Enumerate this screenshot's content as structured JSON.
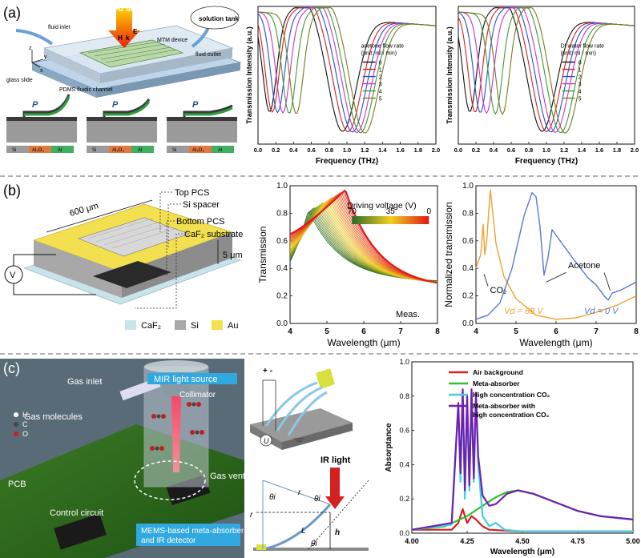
{
  "panels": {
    "a": {
      "label": "(a)",
      "device": {
        "thz_beam": "THz beam",
        "fluid_inlet": "fluid inlet",
        "fluid_outlet": "fluid outlet",
        "solution_tank": "solution tank",
        "mtm_device": "MTM device",
        "glass_slide": "glass slide",
        "pdms_channel": "PDMS fluidic channel",
        "axis_z": "z",
        "axis_y": "y",
        "axis_x": "x",
        "h": "H",
        "e": "E",
        "k": "k",
        "pressure": "P",
        "materials": [
          "Si",
          "Al₂O₃",
          "Al"
        ]
      }
    },
    "b": {
      "label": "(b)",
      "device": {
        "top_pcs": "Top PCS",
        "si_spacer": "Si spacer",
        "bottom_pcs": "Bottom PCS",
        "substrate": "CaF₂ substrate",
        "width": "600 μm",
        "gap": "5 μm",
        "voltage": "V",
        "legend": [
          "CaF₂",
          "Si",
          "Au"
        ]
      }
    },
    "c": {
      "label": "(c)",
      "device": {
        "gas_inlet": "Gas inlet",
        "mir_source": "MIR light source",
        "collimator": "Collimator",
        "gas_molecules": "Gas molecules",
        "legend_h": "H",
        "legend_c": "C",
        "legend_o": "O",
        "pcb": "PCB",
        "gas_vent": "Gas vent",
        "control_circuit": "Control circuit",
        "mems_label_1": "MEMS-based meta-absorber",
        "mems_label_2": "and IR detector",
        "plus_minus": "+  -",
        "u": "U",
        "ir_light": "IR light",
        "theta_i": "θi",
        "r": "r",
        "L": "L",
        "h": "h"
      }
    }
  },
  "chart_data": [
    {
      "type": "line",
      "id": "a-acetone",
      "title": "",
      "xlabel": "Frequency (THz)",
      "ylabel": "Transmission Intensity (a.u.)",
      "xlim": [
        0.0,
        2.0
      ],
      "xticks": [
        "0.0",
        "0.2",
        "0.4",
        "0.6",
        "0.8",
        "1.0",
        "1.2",
        "1.4",
        "1.6",
        "1.8",
        "2.0"
      ],
      "legend_title_1": "acetone flow rate",
      "legend_title_2": "(unit: ml / min)",
      "series": [
        {
          "name": "0",
          "color": "#111111",
          "dips": [
            0.13,
            0.95
          ]
        },
        {
          "name": "1",
          "color": "#d42020",
          "dips": [
            0.16,
            1.01
          ]
        },
        {
          "name": "2",
          "color": "#2050d0",
          "dips": [
            0.22,
            1.06
          ]
        },
        {
          "name": "3",
          "color": "#d030d0",
          "dips": [
            0.28,
            1.11
          ]
        },
        {
          "name": "4",
          "color": "#3a9a3a",
          "dips": [
            0.35,
            1.15
          ]
        },
        {
          "name": "5",
          "color": "#7a7a1a",
          "dips": [
            0.43,
            1.2
          ]
        }
      ]
    },
    {
      "type": "line",
      "id": "a-water",
      "title": "",
      "xlabel": "Frequency (THz)",
      "ylabel": "Transmission Intensity (a.u.)",
      "xlim": [
        0.0,
        2.0
      ],
      "xticks": [
        "0.0",
        "0.2",
        "0.4",
        "0.6",
        "0.8",
        "1.0",
        "1.2",
        "1.4",
        "1.6",
        "1.8",
        "2.0"
      ],
      "legend_title_1": "DI water flow rate",
      "legend_title_2": "(unit: ml / min)",
      "series": [
        {
          "name": "0",
          "color": "#111111",
          "dips": [
            0.13,
            0.95
          ]
        },
        {
          "name": "1",
          "color": "#d42020",
          "dips": [
            0.19,
            1.0
          ]
        },
        {
          "name": "2",
          "color": "#2050d0",
          "dips": [
            0.25,
            1.05
          ]
        },
        {
          "name": "3",
          "color": "#d030d0",
          "dips": [
            0.32,
            1.1
          ]
        },
        {
          "name": "4",
          "color": "#3a9a3a",
          "dips": [
            0.42,
            1.16
          ]
        },
        {
          "name": "5",
          "color": "#7a7a1a",
          "dips": [
            0.5,
            1.21
          ]
        }
      ]
    },
    {
      "type": "line",
      "id": "b-transmission",
      "xlabel": "Wavelength (μm)",
      "ylabel": "Transmission",
      "xlim": [
        4,
        8
      ],
      "ylim": [
        0.0,
        1.0
      ],
      "xticks": [
        "4",
        "5",
        "6",
        "7",
        "8"
      ],
      "yticks": [
        "0.0",
        "0.2",
        "0.4",
        "0.6",
        "0.8",
        "1.0"
      ],
      "colorbar_title": "Driving voltage (V)",
      "colorbar_ticks": [
        "70",
        "35",
        "0"
      ],
      "annotation": "Meas.",
      "series_count": 30,
      "peak_range_um": [
        4.5,
        5.5
      ],
      "peak_values": [
        0.82,
        0.97
      ]
    },
    {
      "type": "line",
      "id": "b-normalized",
      "xlabel": "Wavelength (μm)",
      "ylabel": "Normalized transmission",
      "xlim": [
        4,
        8
      ],
      "ylim": [
        0.0,
        1.0
      ],
      "xticks": [
        "4",
        "5",
        "6",
        "7",
        "8"
      ],
      "yticks": [
        "0.0",
        "0.2",
        "0.4",
        "0.6",
        "0.8",
        "1.0"
      ],
      "annotations": [
        "CO₂",
        "Acetone"
      ],
      "series": [
        {
          "name": "Vₐ = 68 V",
          "label": "Vd = 68 V",
          "color": "#f0a030",
          "x": [
            4.0,
            4.12,
            4.18,
            4.22,
            4.27,
            4.32,
            4.36,
            4.42,
            4.5,
            4.7,
            5.0,
            5.5,
            6.0,
            6.5,
            7.0,
            7.5,
            8.0
          ],
          "y": [
            0.4,
            0.5,
            0.72,
            0.5,
            0.6,
            0.82,
            0.97,
            0.8,
            0.58,
            0.34,
            0.18,
            0.06,
            0.03,
            0.04,
            0.08,
            0.13,
            0.2
          ]
        },
        {
          "name": "Vₐ = 0 V",
          "label": "Vd = 0 V",
          "color": "#5a78d0",
          "x": [
            4.0,
            4.3,
            4.6,
            4.9,
            5.2,
            5.4,
            5.5,
            5.6,
            5.7,
            5.8,
            5.9,
            6.1,
            6.4,
            6.8,
            7.0,
            7.2,
            7.3,
            7.4,
            7.6,
            8.0
          ],
          "y": [
            0.03,
            0.06,
            0.15,
            0.4,
            0.78,
            0.95,
            0.92,
            0.7,
            0.35,
            0.48,
            0.68,
            0.6,
            0.48,
            0.33,
            0.28,
            0.2,
            0.17,
            0.22,
            0.24,
            0.3
          ]
        }
      ]
    },
    {
      "type": "line",
      "id": "c-absorptance",
      "xlabel": "Wavelength (μm)",
      "ylabel": "Absorptance",
      "xlim": [
        4.0,
        5.0
      ],
      "ylim": [
        0.0,
        1.0
      ],
      "xticks": [
        "4.00",
        "4.25",
        "4.50",
        "4.75",
        "5.00"
      ],
      "yticks": [
        "0.0",
        "0.2",
        "0.4",
        "0.6",
        "0.8",
        "1.0"
      ],
      "series": [
        {
          "name": "Air background",
          "label": "Air background",
          "color": "#d02020",
          "x": [
            4.0,
            4.18,
            4.21,
            4.23,
            4.25,
            4.27,
            4.29,
            4.32,
            4.35,
            4.5,
            4.75,
            5.0
          ],
          "y": [
            0.02,
            0.02,
            0.06,
            0.14,
            0.06,
            0.1,
            0.08,
            0.04,
            0.02,
            0.01,
            0.01,
            0.01
          ]
        },
        {
          "name": "Meta-absorber",
          "label": "Meta-absorber",
          "color": "#30c030",
          "x": [
            4.0,
            4.15,
            4.25,
            4.32,
            4.38,
            4.43,
            4.48,
            4.55,
            4.65,
            4.75,
            4.85,
            5.0
          ],
          "y": [
            0.02,
            0.04,
            0.1,
            0.16,
            0.21,
            0.24,
            0.25,
            0.23,
            0.18,
            0.13,
            0.1,
            0.08
          ]
        },
        {
          "name": "High concentration CO2",
          "label": "High concentration CO₂",
          "color": "#40d0e0",
          "x": [
            4.0,
            4.18,
            4.21,
            4.22,
            4.23,
            4.24,
            4.25,
            4.26,
            4.27,
            4.28,
            4.29,
            4.3,
            4.32,
            4.35,
            4.38,
            4.42,
            4.5,
            5.0
          ],
          "y": [
            0.02,
            0.05,
            0.74,
            0.3,
            0.82,
            0.2,
            0.78,
            0.25,
            0.82,
            0.3,
            0.8,
            0.4,
            0.1,
            0.04,
            0.06,
            0.02,
            0.01,
            0.01
          ]
        },
        {
          "name": "Meta-absorber with high concentration CO2",
          "label_1": "Meta-absorber with",
          "label_2": "high concentration CO₂",
          "color": "#7020b0",
          "x": [
            4.0,
            4.18,
            4.21,
            4.22,
            4.23,
            4.24,
            4.25,
            4.26,
            4.27,
            4.28,
            4.29,
            4.3,
            4.32,
            4.35,
            4.38,
            4.43,
            4.48,
            4.55,
            4.65,
            4.75,
            4.85,
            5.0
          ],
          "y": [
            0.02,
            0.06,
            0.76,
            0.35,
            0.84,
            0.25,
            0.8,
            0.28,
            0.84,
            0.32,
            0.82,
            0.45,
            0.22,
            0.16,
            0.17,
            0.23,
            0.25,
            0.23,
            0.18,
            0.13,
            0.1,
            0.08
          ]
        }
      ]
    }
  ]
}
